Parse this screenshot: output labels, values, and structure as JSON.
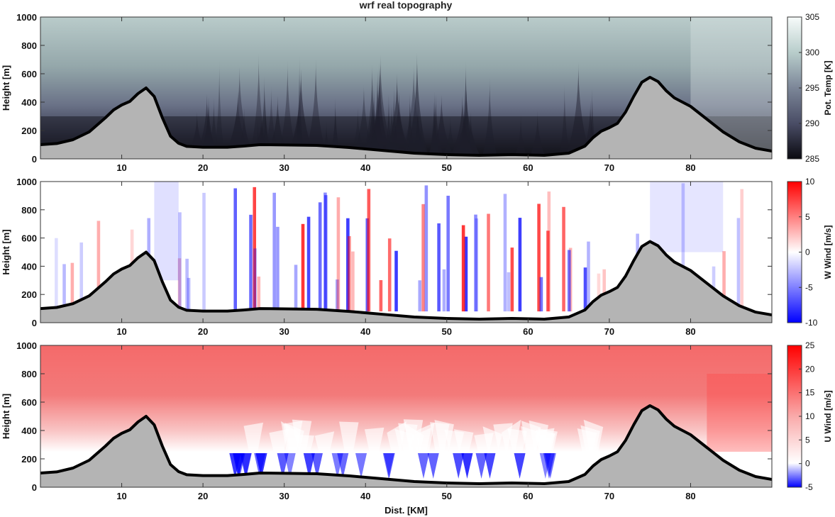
{
  "title": "wrf real topography",
  "colors": {
    "terrain_fill": "#b4b4b4",
    "terrain_line": "#000000",
    "theta_cold": "#0a0a10",
    "theta_mid": "#4a4d66",
    "theta_warm": "#f7fbfa",
    "wind_negative": "#0000ff",
    "wind_zero": "#ffffff",
    "wind_positive": "#ff0000"
  },
  "chart_data": [
    {
      "type": "heatmap",
      "variable": "potential-temperature",
      "xlabel": "",
      "ylabel": "Height [m]",
      "xlim": [
        0,
        90
      ],
      "ylim": [
        0,
        1000
      ],
      "xticks": [
        10,
        20,
        30,
        40,
        50,
        60,
        70,
        80
      ],
      "yticks": [
        0,
        200,
        400,
        600,
        800,
        1000
      ],
      "colorbar": {
        "label": "Pot. Temp [K]",
        "range": [
          285,
          305
        ],
        "ticks": [
          285,
          290,
          295,
          300,
          305
        ]
      }
    },
    {
      "type": "heatmap",
      "variable": "vertical-wind",
      "xlabel": "",
      "ylabel": "Height [m]",
      "xlim": [
        0,
        90
      ],
      "ylim": [
        0,
        1000
      ],
      "xticks": [
        10,
        20,
        30,
        40,
        50,
        60,
        70,
        80
      ],
      "yticks": [
        0,
        200,
        400,
        600,
        800,
        1000
      ],
      "colorbar": {
        "label": "W Wind [m/s]",
        "range": [
          -10,
          10
        ],
        "ticks": [
          -10,
          -5,
          0,
          5,
          10
        ]
      }
    },
    {
      "type": "heatmap",
      "variable": "horizontal-wind",
      "xlabel": "Dist. [KM]",
      "ylabel": "Height [m]",
      "xlim": [
        0,
        90
      ],
      "ylim": [
        0,
        1000
      ],
      "xticks": [
        10,
        20,
        30,
        40,
        50,
        60,
        70,
        80
      ],
      "yticks": [
        0,
        200,
        400,
        600,
        800,
        1000
      ],
      "colorbar": {
        "label": "U Wind [m/s]",
        "range": [
          -5,
          25
        ],
        "ticks": [
          -5,
          0,
          5,
          10,
          15,
          20,
          25
        ]
      }
    }
  ],
  "terrain": {
    "x": [
      0,
      2,
      4,
      6,
      8,
      9,
      10,
      11,
      12,
      13,
      14,
      15,
      16,
      17,
      18,
      20,
      23,
      25,
      27,
      30,
      34,
      38,
      42,
      46,
      50,
      54,
      58,
      62,
      65,
      67,
      68,
      69,
      70,
      71,
      72,
      73,
      74,
      75,
      76,
      77,
      78,
      80,
      82,
      84,
      86,
      88,
      90
    ],
    "y": [
      100,
      108,
      135,
      190,
      290,
      345,
      380,
      405,
      460,
      500,
      440,
      290,
      160,
      110,
      88,
      82,
      82,
      90,
      100,
      98,
      95,
      80,
      60,
      40,
      30,
      25,
      30,
      25,
      40,
      90,
      150,
      195,
      220,
      250,
      330,
      440,
      540,
      575,
      545,
      480,
      430,
      370,
      280,
      190,
      120,
      75,
      55
    ]
  }
}
